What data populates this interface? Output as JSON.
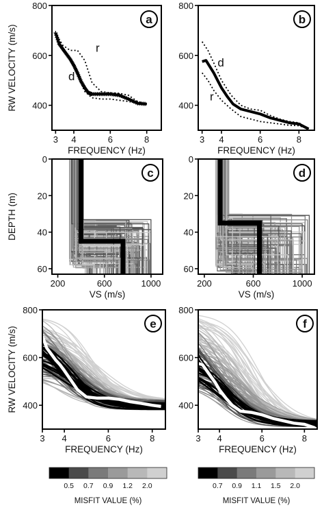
{
  "chart_data": [
    {
      "panel": "a",
      "type": "line",
      "xlabel": "FREQUENCY (Hz)",
      "ylabel": "RW VELOCITY (m/s)",
      "xlim": [
        2.8,
        8.8
      ],
      "ylim": [
        300,
        800
      ],
      "xticks": [
        3,
        4,
        6,
        8
      ],
      "yticks": [
        400,
        600,
        800
      ],
      "annotations": [
        {
          "text": "r",
          "x": 5.2,
          "y": 615
        },
        {
          "text": "d",
          "x": 3.7,
          "y": 500
        }
      ],
      "series": [
        {
          "style": "observed",
          "x": [
            3.0,
            3.2,
            3.4,
            3.6,
            3.8,
            4.0,
            4.2,
            4.4,
            4.6,
            4.8,
            5.0,
            5.5,
            6.0,
            6.5,
            7.0,
            7.5,
            8.0
          ],
          "y": [
            690,
            645,
            625,
            605,
            585,
            560,
            530,
            495,
            470,
            450,
            445,
            445,
            445,
            440,
            425,
            408,
            405
          ]
        },
        {
          "style": "bound",
          "x": [
            3.0,
            3.4,
            3.8,
            4.2,
            4.6,
            5.0,
            5.5,
            6.0,
            6.5,
            7.0,
            7.5,
            8.0
          ],
          "y": [
            690,
            640,
            620,
            620,
            580,
            490,
            455,
            450,
            448,
            440,
            415,
            405
          ]
        },
        {
          "style": "bound",
          "x": [
            3.0,
            3.4,
            3.8,
            4.2,
            4.6,
            5.0,
            5.5,
            6.0,
            6.5,
            7.0,
            7.5,
            8.0
          ],
          "y": [
            690,
            630,
            585,
            520,
            455,
            430,
            425,
            425,
            420,
            415,
            408,
            405
          ]
        }
      ]
    },
    {
      "panel": "b",
      "type": "line",
      "xlabel": "FREQUENCY (Hz)",
      "ylabel": "",
      "xlim": [
        2.8,
        8.8
      ],
      "ylim": [
        300,
        800
      ],
      "xticks": [
        3,
        4,
        6,
        8
      ],
      "yticks": [
        400,
        600,
        800
      ],
      "annotations": [
        {
          "text": "d",
          "x": 3.8,
          "y": 555
        },
        {
          "text": "r",
          "x": 3.4,
          "y": 420
        }
      ],
      "series": [
        {
          "style": "observed",
          "x": [
            3.0,
            3.2,
            3.4,
            3.6,
            3.8,
            4.0,
            4.3,
            4.6,
            5.0,
            5.5,
            6.0,
            6.5,
            7.0,
            7.5,
            8.0,
            8.5
          ],
          "y": [
            575,
            580,
            555,
            530,
            500,
            470,
            435,
            405,
            385,
            375,
            365,
            350,
            340,
            330,
            325,
            305
          ]
        },
        {
          "style": "bound",
          "x": [
            3.0,
            3.3,
            3.6,
            4.0,
            4.5,
            5.0,
            5.5,
            6.0,
            6.5,
            7.0,
            7.5,
            8.0,
            8.5
          ],
          "y": [
            655,
            620,
            570,
            500,
            440,
            400,
            385,
            380,
            360,
            345,
            335,
            330,
            305
          ]
        },
        {
          "style": "bound",
          "x": [
            3.0,
            3.3,
            3.6,
            4.0,
            4.5,
            5.0,
            5.5,
            6.0,
            6.5,
            7.0,
            7.5,
            8.0,
            8.5
          ],
          "y": [
            530,
            500,
            460,
            420,
            385,
            355,
            345,
            335,
            330,
            325,
            320,
            318,
            305
          ]
        }
      ]
    },
    {
      "panel": "c",
      "type": "line",
      "xlabel": "VS (m/s)",
      "ylabel": "DEPTH (m)",
      "xlim": [
        150,
        1100
      ],
      "ylim": [
        0,
        63
      ],
      "y_inverted": true,
      "xticks": [
        200,
        600,
        1000
      ],
      "yticks": [
        0,
        20,
        40,
        60
      ],
      "layer1_vs": {
        "min": 300,
        "max": 420,
        "best": 400
      },
      "interface_depth": {
        "min": 33,
        "max": 60,
        "best": 45
      },
      "halfspace_vs": {
        "min": 430,
        "max": 1000,
        "best": 760
      }
    },
    {
      "panel": "d",
      "type": "line",
      "xlabel": "VS (m/s)",
      "ylabel": "",
      "xlim": [
        150,
        1100
      ],
      "ylim": [
        0,
        63
      ],
      "y_inverted": true,
      "xticks": [
        200,
        600,
        1000
      ],
      "yticks": [
        0,
        20,
        40,
        60
      ],
      "layer1_vs": {
        "min": 290,
        "max": 400,
        "best": 330
      },
      "interface_depth": {
        "min": 30,
        "max": 62,
        "best": 35
      },
      "halfspace_vs": {
        "min": 420,
        "max": 1060,
        "best": 650
      }
    },
    {
      "panel": "e",
      "type": "line",
      "xlabel": "FREQUENCY (Hz)",
      "ylabel": "RW VELOCITY (m/s)",
      "xlim": [
        3,
        8.6
      ],
      "ylim": [
        300,
        800
      ],
      "xticks": [
        3,
        4,
        6,
        8
      ],
      "yticks": [
        400,
        600,
        800
      ],
      "observed": {
        "x": [
          3.0,
          3.2,
          3.4,
          3.6,
          3.8,
          4.0,
          4.3,
          4.6,
          5.0,
          5.5,
          6.0,
          6.5,
          7.0,
          7.5,
          8.0,
          8.4
        ],
        "y": [
          690,
          640,
          615,
          590,
          570,
          545,
          505,
          465,
          435,
          430,
          430,
          425,
          415,
          408,
          400,
          395
        ]
      },
      "model_fan": {
        "start_min": 520,
        "start_max": 800,
        "end_min": 380,
        "end_max": 420,
        "count": 110
      }
    },
    {
      "panel": "f",
      "type": "line",
      "xlabel": "FREQUENCY (Hz)",
      "ylabel": "",
      "xlim": [
        3,
        8.6
      ],
      "ylim": [
        300,
        800
      ],
      "xticks": [
        3,
        4,
        6,
        8
      ],
      "yticks": [
        400,
        600,
        800
      ],
      "observed": {
        "x": [
          3.0,
          3.2,
          3.4,
          3.6,
          3.8,
          4.0,
          4.3,
          4.6,
          5.0,
          5.5,
          6.0,
          6.5,
          7.0,
          7.5,
          8.0,
          8.5
        ],
        "y": [
          575,
          570,
          545,
          520,
          495,
          465,
          430,
          400,
          375,
          370,
          360,
          345,
          335,
          325,
          320,
          305
        ]
      },
      "model_fan": {
        "start_min": 480,
        "start_max": 800,
        "end_min": 310,
        "end_max": 335,
        "count": 110
      }
    }
  ],
  "colorbars": [
    {
      "label": "MISFIT VALUE (%)",
      "ticks": [
        "0.5",
        "0.7",
        "0.9",
        "1.2",
        "2.0"
      ],
      "colors": [
        "#000000",
        "#4a4a4a",
        "#7a7a7a",
        "#9a9a9a",
        "#b8b8b8",
        "#d0d0d0"
      ]
    },
    {
      "label": "MISFIT VALUE (%)",
      "ticks": [
        "0.7",
        "0.9",
        "1.1",
        "1.5",
        "2.0"
      ],
      "colors": [
        "#000000",
        "#4a4a4a",
        "#7a7a7a",
        "#9a9a9a",
        "#b8b8b8",
        "#d0d0d0"
      ]
    }
  ]
}
